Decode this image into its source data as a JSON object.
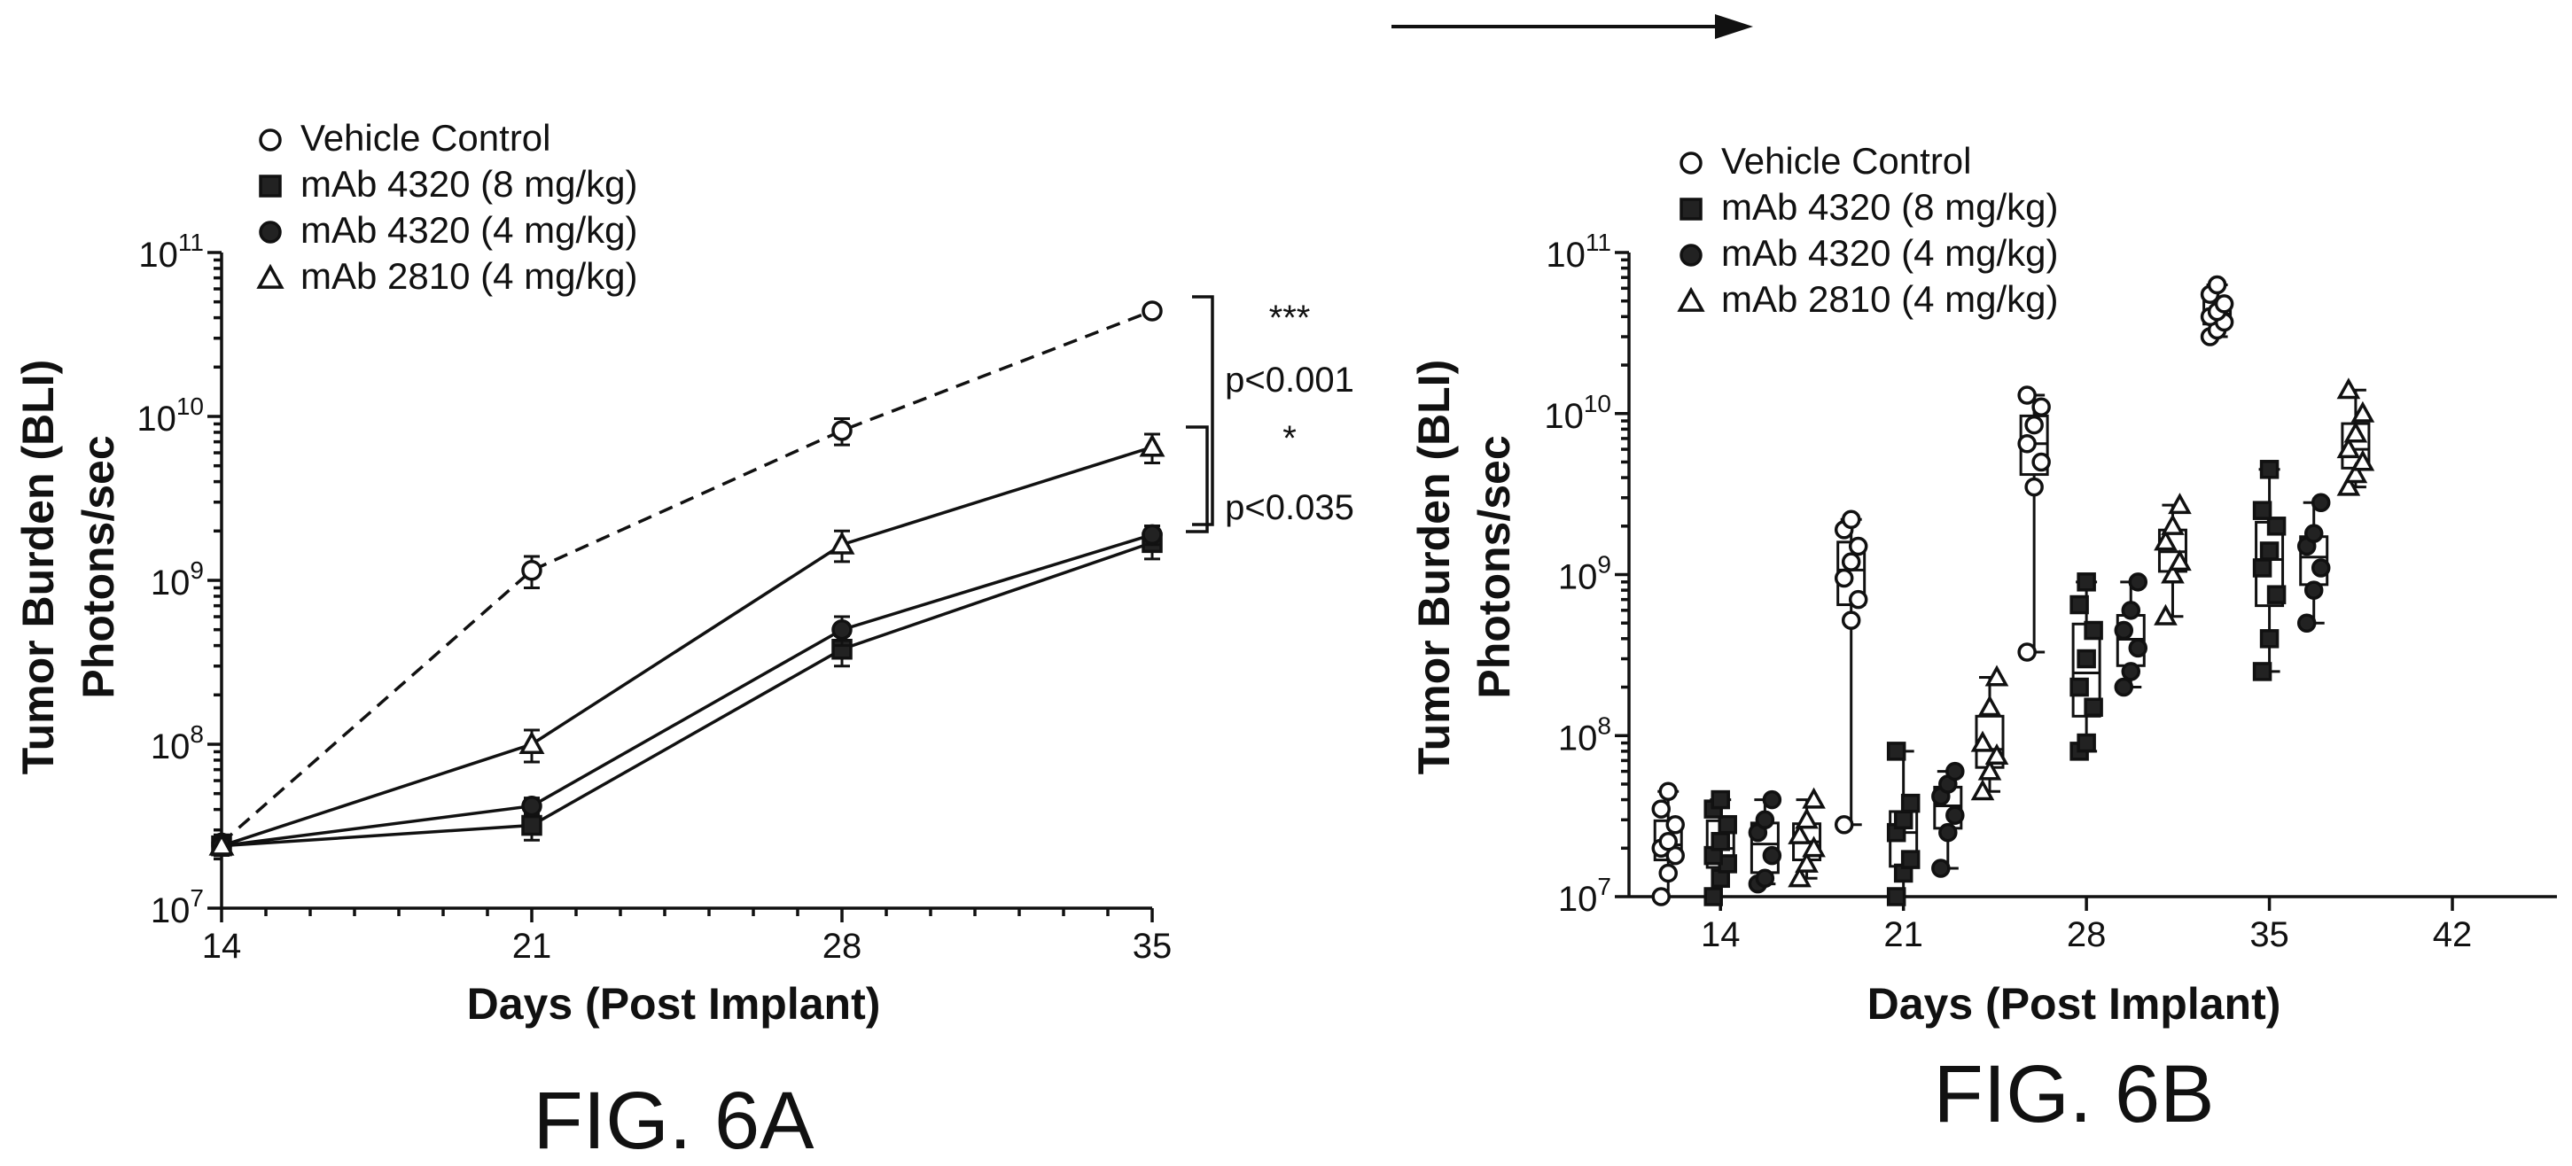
{
  "figure_arrow": "→",
  "chart_data": [
    {
      "type": "line",
      "figure_label": "FIG. 6A",
      "xlabel": "Days (Post Implant)",
      "ylabel_line1": "Tumor Burden (BLI)",
      "ylabel_line2": "Photons/sec",
      "x_ticks": [
        "14",
        "21",
        "28",
        "35"
      ],
      "xlim": [
        14,
        35
      ],
      "y_scale": "log",
      "ylim": [
        10000000,
        100000000000
      ],
      "y_ticks": [
        {
          "base": "10",
          "exp": "7"
        },
        {
          "base": "10",
          "exp": "8"
        },
        {
          "base": "10",
          "exp": "9"
        },
        {
          "base": "10",
          "exp": "10"
        },
        {
          "base": "10",
          "exp": "11"
        }
      ],
      "series": [
        {
          "name": "Vehicle Control",
          "marker": "circle-open",
          "dashed": true,
          "x": [
            14,
            21,
            28,
            35
          ],
          "y": [
            25000000,
            1150000000,
            8200000000,
            44000000000
          ],
          "err": [
            3000000,
            250000000,
            1500000000,
            3000000000
          ]
        },
        {
          "name": "mAb 4320 (8 mg/kg)",
          "marker": "square-filled",
          "dashed": false,
          "x": [
            14,
            21,
            28,
            35
          ],
          "y": [
            24000000,
            32000000,
            380000000,
            1700000000
          ],
          "err": [
            3000000,
            6000000,
            80000000,
            350000000
          ]
        },
        {
          "name": "mAb 4320 (4 mg/kg)",
          "marker": "circle-filled",
          "dashed": false,
          "x": [
            14,
            21,
            28,
            35
          ],
          "y": [
            24000000,
            42000000,
            500000000,
            1900000000
          ],
          "err": [
            3000000,
            5000000,
            100000000,
            250000000
          ]
        },
        {
          "name": "mAb 2810 (4 mg/kg)",
          "marker": "triangle-open",
          "dashed": false,
          "x": [
            14,
            21,
            28,
            35
          ],
          "y": [
            24000000,
            100000000,
            1650000000,
            6500000000
          ],
          "err": [
            3000000,
            22000000,
            350000000,
            1300000000
          ]
        }
      ],
      "annotations": [
        {
          "stars": "***",
          "p": "p<0.001"
        },
        {
          "stars": "*",
          "p": "p<0.035"
        }
      ]
    },
    {
      "type": "scatter",
      "figure_label": "FIG. 6B",
      "xlabel": "Days (Post Implant)",
      "ylabel_line1": "Tumor Burden (BLI)",
      "ylabel_line2": "Photons/sec",
      "x_ticks": [
        "14",
        "21",
        "28",
        "35",
        "42"
      ],
      "xlim": [
        10.5,
        46
      ],
      "y_scale": "log",
      "ylim": [
        10000000,
        100000000000
      ],
      "y_ticks": [
        {
          "base": "10",
          "exp": "7"
        },
        {
          "base": "10",
          "exp": "8"
        },
        {
          "base": "10",
          "exp": "9"
        },
        {
          "base": "10",
          "exp": "10"
        },
        {
          "base": "10",
          "exp": "11"
        }
      ],
      "series": [
        {
          "name": "Vehicle Control",
          "marker": "circle-open",
          "x": [
            12,
            19,
            26,
            33
          ],
          "points": [
            [
              10000000,
              14000000,
              18000000,
              20000000,
              22000000,
              28000000,
              35000000,
              45000000
            ],
            [
              28000000,
              520000000,
              700000000,
              950000000,
              1200000000,
              1500000000,
              1900000000,
              2200000000
            ],
            [
              330000000,
              3500000000,
              5000000000,
              6500000000,
              8500000000,
              11000000000,
              13000000000
            ],
            [
              30000000000,
              33000000000,
              37000000000,
              40000000000,
              43000000000,
              48000000000,
              55000000000,
              63000000000
            ]
          ]
        },
        {
          "name": "mAb 4320 (8 mg/kg)",
          "marker": "square-filled",
          "x": [
            14,
            21,
            28,
            35
          ],
          "points": [
            [
              10000000,
              13000000,
              16000000,
              18000000,
              22000000,
              28000000,
              35000000,
              40000000
            ],
            [
              10000000,
              14000000,
              17000000,
              25000000,
              30000000,
              38000000,
              80000000
            ],
            [
              80000000,
              90000000,
              150000000,
              200000000,
              300000000,
              450000000,
              650000000,
              900000000
            ],
            [
              250000000,
              400000000,
              750000000,
              1100000000,
              1400000000,
              2000000000,
              2500000000,
              4500000000
            ]
          ]
        },
        {
          "name": "mAb 4320 (4 mg/kg)",
          "marker": "circle-filled",
          "x": [
            15.7,
            22.7,
            29.7,
            36.7
          ],
          "points": [
            [
              12000000,
              13000000,
              18000000,
              25000000,
              30000000,
              40000000
            ],
            [
              15000000,
              25000000,
              32000000,
              42000000,
              50000000,
              60000000
            ],
            [
              200000000,
              250000000,
              350000000,
              450000000,
              600000000,
              900000000
            ],
            [
              500000000,
              800000000,
              1100000000,
              1500000000,
              1800000000,
              2800000000
            ]
          ]
        },
        {
          "name": "mAb 2810 (4 mg/kg)",
          "marker": "triangle-open",
          "x": [
            17.3,
            24.3,
            31.3,
            38.3
          ],
          "points": [
            [
              13000000,
              16000000,
              20000000,
              24000000,
              30000000,
              40000000
            ],
            [
              45000000,
              60000000,
              75000000,
              90000000,
              150000000,
              230000000
            ],
            [
              550000000,
              1000000000,
              1200000000,
              1600000000,
              2000000000,
              2700000000
            ],
            [
              3500000000,
              4200000000,
              5000000000,
              6000000000,
              7500000000,
              10000000000,
              14000000000
            ]
          ]
        }
      ]
    }
  ]
}
